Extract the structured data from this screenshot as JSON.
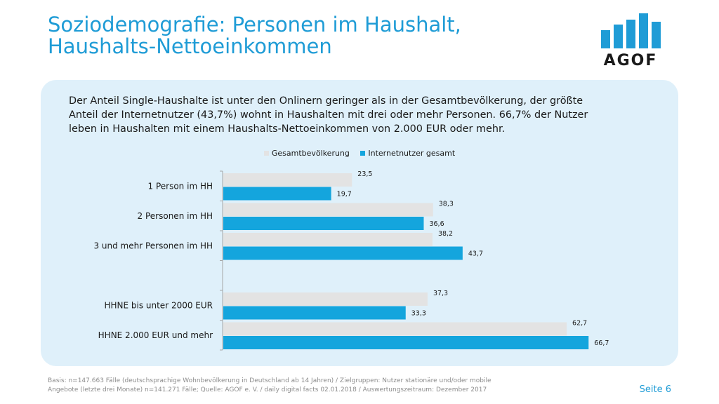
{
  "header": {
    "title_line1": "Soziodemografie: Personen im Haushalt,",
    "title_line2": "Haushalts-Nettoeinkommen",
    "logo_text": "AGOF"
  },
  "intro": {
    "line1": "Der Anteil Single-Haushalte ist unter den Onlinern geringer als in der Gesamtbevölkerung, der größte",
    "line2": "Anteil der Internetnutzer (43,7%) wohnt in Haushalten mit drei oder mehr Personen. 66,7% der Nutzer",
    "line3": "leben in Haushalten mit einem Haushalts-Nettoeinkommen von 2.000 EUR oder mehr."
  },
  "colors": {
    "accent": "#1f9cd6",
    "series_gesamt": "#e3e3e3",
    "series_internet": "#14a5dd",
    "panel": "#dff0fa"
  },
  "chart_data": {
    "type": "bar",
    "orientation": "horizontal",
    "categories": [
      "1 Person im HH",
      "2 Personen im HH",
      "3 und mehr Personen im HH",
      "",
      "HHNE bis unter 2000 EUR",
      "HHNE 2.000 EUR und mehr"
    ],
    "series": [
      {
        "name": "Gesamtbevölkerung",
        "values": [
          23.5,
          38.3,
          38.2,
          null,
          37.3,
          62.7
        ],
        "labels": [
          "23,5",
          "38,3",
          "38,2",
          "",
          "37,3",
          "62,7"
        ],
        "color": "#e3e3e3"
      },
      {
        "name": "Internetnutzer gesamt",
        "values": [
          19.7,
          36.6,
          43.7,
          null,
          33.3,
          66.7
        ],
        "labels": [
          "19,7",
          "36,6",
          "43,7",
          "",
          "33,3",
          "66,7"
        ],
        "color": "#14a5dd"
      }
    ],
    "xlim": [
      0,
      68
    ],
    "legend": "top-center",
    "grid": false
  },
  "footer": {
    "line1": "Basis: n=147.663 Fälle (deutschsprachige Wohnbevölkerung in Deutschland ab 14 Jahren) / Zielgruppen: Nutzer stationäre und/oder mobile",
    "line2": "Angebote (letzte drei Monate) n=141.271 Fälle; Quelle: AGOF e. V. / daily digital facts 02.01.2018 / Auswertungszeitraum: Dezember 2017",
    "page": "Seite 6"
  }
}
